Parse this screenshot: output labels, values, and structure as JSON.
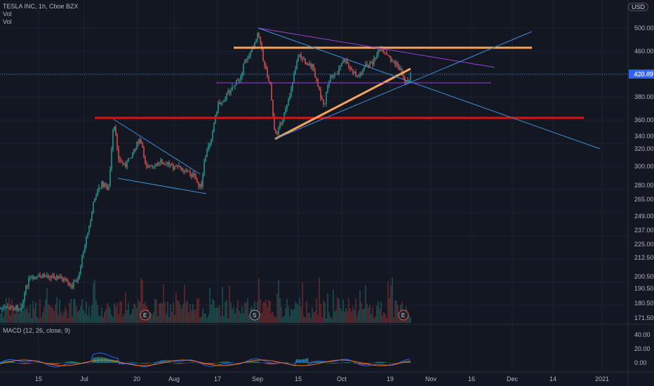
{
  "header": {
    "title": "TESLA INC, 1h, Cboe BZX",
    "vol1": "Vol",
    "vol2": "Vol",
    "currency": "USD"
  },
  "price_badge": "420.49",
  "macd_label": "MACD (12, 26, close, 9)",
  "event_markers": [
    "E",
    "S",
    "E"
  ],
  "chart_data": {
    "type": "candlestick",
    "title": "TESLA INC, 1h, Cboe BZX",
    "y_ticks": [
      "500.00",
      "460.00",
      "420.00",
      "380.00",
      "360.00",
      "340.00",
      "320.00",
      "300.00",
      "280.00",
      "265.00",
      "249.00",
      "237.00",
      "225.00",
      "212.50",
      "200.50",
      "190.50",
      "180.50",
      "171.50"
    ],
    "x_ticks": [
      "15",
      "Jul",
      "20",
      "Aug",
      "17",
      "Sep",
      "15",
      "Oct",
      "19",
      "Nov",
      "16",
      "Dec",
      "14",
      "2021"
    ],
    "macd_ticks": [
      "40.00",
      "20.00",
      "0.00"
    ],
    "last_price": 420.49,
    "colors": {
      "up": "#26a69a",
      "down": "#ef5350",
      "hline_red": "#e01010",
      "hline_orange": "#f5a35c",
      "purple": "#9c3fd6",
      "blue": "#3d8fd6"
    }
  }
}
